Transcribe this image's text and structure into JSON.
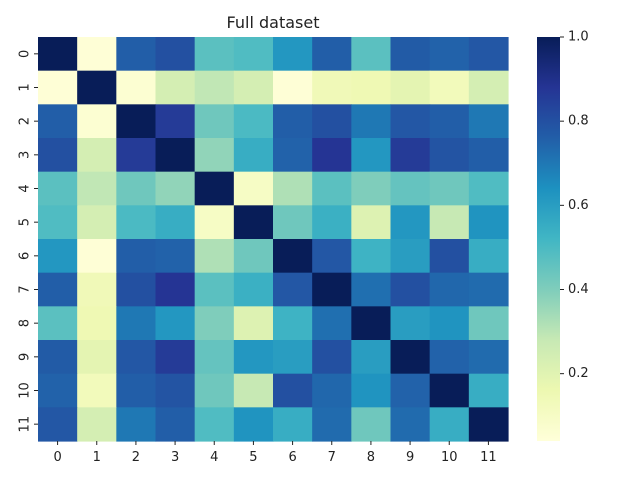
{
  "chart_data": {
    "type": "heatmap",
    "title": "Full dataset",
    "x_labels": [
      "0",
      "1",
      "2",
      "3",
      "4",
      "5",
      "6",
      "7",
      "8",
      "9",
      "10",
      "11"
    ],
    "y_labels": [
      "0",
      "1",
      "2",
      "3",
      "4",
      "5",
      "6",
      "7",
      "8",
      "9",
      "10",
      "11"
    ],
    "colorbar": {
      "min": 0.04,
      "max": 1.0,
      "ticks": [
        0.2,
        0.4,
        0.6,
        0.8,
        1.0
      ],
      "tick_labels": [
        "0.2",
        "0.4",
        "0.6",
        "0.8",
        "1.0"
      ]
    },
    "colormap": "YlGnBu",
    "colormap_stops": [
      "#ffffd9",
      "#edf8b1",
      "#c7e9b4",
      "#7fcdbb",
      "#41b6c4",
      "#1d91c0",
      "#225ea8",
      "#253494",
      "#081d58"
    ],
    "values": [
      [
        1.0,
        0.05,
        0.76,
        0.8,
        0.47,
        0.49,
        0.62,
        0.76,
        0.47,
        0.77,
        0.75,
        0.78
      ],
      [
        0.05,
        1.0,
        0.06,
        0.24,
        0.29,
        0.24,
        0.05,
        0.14,
        0.15,
        0.19,
        0.13,
        0.24
      ],
      [
        0.76,
        0.06,
        1.0,
        0.86,
        0.43,
        0.5,
        0.76,
        0.8,
        0.7,
        0.78,
        0.76,
        0.7
      ],
      [
        0.8,
        0.24,
        0.86,
        1.0,
        0.37,
        0.55,
        0.75,
        0.88,
        0.62,
        0.86,
        0.79,
        0.76
      ],
      [
        0.47,
        0.29,
        0.43,
        0.37,
        1.0,
        0.1,
        0.32,
        0.47,
        0.4,
        0.45,
        0.43,
        0.49
      ],
      [
        0.49,
        0.24,
        0.5,
        0.55,
        0.1,
        1.0,
        0.43,
        0.54,
        0.21,
        0.62,
        0.28,
        0.63
      ],
      [
        0.62,
        0.05,
        0.76,
        0.75,
        0.32,
        0.43,
        1.0,
        0.78,
        0.53,
        0.6,
        0.8,
        0.55
      ],
      [
        0.76,
        0.14,
        0.8,
        0.88,
        0.47,
        0.54,
        0.78,
        1.0,
        0.72,
        0.8,
        0.74,
        0.73
      ],
      [
        0.47,
        0.15,
        0.7,
        0.62,
        0.4,
        0.21,
        0.53,
        0.72,
        1.0,
        0.6,
        0.63,
        0.43
      ],
      [
        0.77,
        0.19,
        0.78,
        0.86,
        0.45,
        0.62,
        0.6,
        0.8,
        0.6,
        1.0,
        0.75,
        0.73
      ],
      [
        0.75,
        0.13,
        0.76,
        0.79,
        0.43,
        0.28,
        0.8,
        0.74,
        0.63,
        0.75,
        1.0,
        0.55
      ],
      [
        0.78,
        0.24,
        0.7,
        0.76,
        0.49,
        0.63,
        0.55,
        0.73,
        0.43,
        0.73,
        0.55,
        1.0
      ]
    ]
  }
}
